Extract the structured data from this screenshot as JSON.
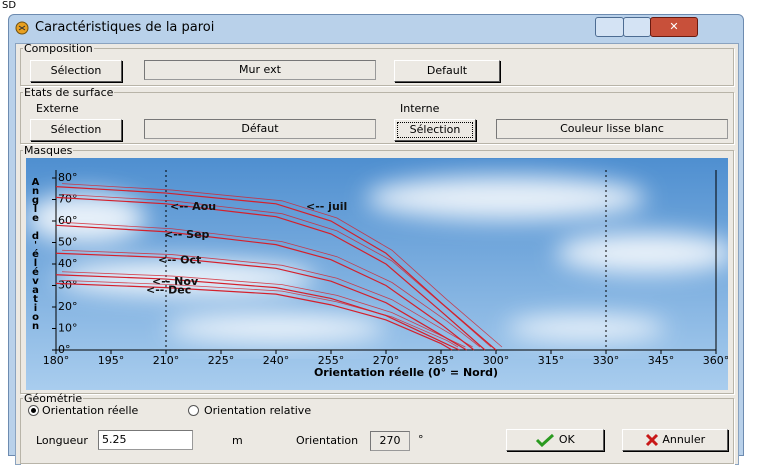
{
  "corner_text": "SD",
  "window": {
    "title": "Caractéristiques de la paroi"
  },
  "composition": {
    "legend": "Composition",
    "button": "Sélection",
    "wall": "Mur ext",
    "default_button": "Default"
  },
  "surface": {
    "legend": "Etats de surface",
    "external_label": "Externe",
    "internal_label": "Interne",
    "external_button": "Sélection",
    "external_value": "Défaut",
    "internal_button": "Sélection",
    "internal_value": "Couleur lisse blanc"
  },
  "masks": {
    "legend": "Masques"
  },
  "chart_data": {
    "type": "line",
    "y_label": "Angle d'élévation",
    "x_label": "Orientation réelle (0° = Nord)",
    "xlim": [
      180,
      360
    ],
    "ylim": [
      0,
      80
    ],
    "xticks": [
      {
        "value": 180,
        "label": "180°"
      },
      {
        "value": 195,
        "label": "195°"
      },
      {
        "value": 210,
        "label": "210°"
      },
      {
        "value": 225,
        "label": "225°"
      },
      {
        "value": 240,
        "label": "240°"
      },
      {
        "value": 255,
        "label": "255°"
      },
      {
        "value": 270,
        "label": "270°"
      },
      {
        "value": 285,
        "label": "285°"
      },
      {
        "value": 300,
        "label": "300°"
      },
      {
        "value": 315,
        "label": "315°"
      },
      {
        "value": 330,
        "label": "330°"
      },
      {
        "value": 345,
        "label": "345°"
      },
      {
        "value": 360,
        "label": "360°"
      }
    ],
    "yticks": [
      {
        "value": 0,
        "label": "0°"
      },
      {
        "value": 10,
        "label": "10°"
      },
      {
        "value": 20,
        "label": "20°"
      },
      {
        "value": 30,
        "label": "30°"
      },
      {
        "value": 40,
        "label": "40°"
      },
      {
        "value": 50,
        "label": "50°"
      },
      {
        "value": 60,
        "label": "60°"
      },
      {
        "value": 70,
        "label": "70°"
      },
      {
        "value": 80,
        "label": "80°"
      }
    ],
    "vlines": [
      210,
      330
    ],
    "color": "#d4202c",
    "series": [
      {
        "name": "<-- juil",
        "x": [
          180,
          210,
          240,
          255,
          270,
          285,
          300
        ],
        "values": [
          76,
          73,
          68,
          60,
          45,
          22,
          0
        ]
      },
      {
        "name": "<-- Aou",
        "x": [
          180,
          210,
          240,
          255,
          270,
          285,
          297
        ],
        "values": [
          71,
          68,
          62,
          54,
          40,
          18,
          0
        ]
      },
      {
        "name": "<-- Sep",
        "x": [
          180,
          210,
          240,
          255,
          270,
          285,
          294
        ],
        "values": [
          58,
          55,
          49,
          42,
          30,
          12,
          0
        ]
      },
      {
        "name": "<-- Oct",
        "x": [
          180,
          210,
          240,
          255,
          270,
          285,
          292
        ],
        "values": [
          45,
          43,
          38,
          32,
          22,
          7,
          0
        ]
      },
      {
        "name": "<-- Nov",
        "x": [
          180,
          210,
          240,
          255,
          270,
          285,
          290
        ],
        "values": [
          35,
          33,
          29,
          24,
          16,
          4,
          0
        ]
      },
      {
        "name": "<-- Dec",
        "x": [
          180,
          210,
          240,
          255,
          270,
          285,
          288
        ],
        "values": [
          31,
          29,
          26,
          21,
          14,
          3,
          0
        ]
      }
    ]
  },
  "geometry": {
    "legend": "Géométrie",
    "radio_real": "Orientation réelle",
    "radio_relative": "Orientation relative",
    "length_label": "Longueur",
    "length_value": "5.25",
    "length_unit": "m",
    "orientation_label": "Orientation",
    "orientation_value": "270",
    "orientation_unit": "°",
    "ok_button": "OK",
    "cancel_button": "Annuler"
  }
}
